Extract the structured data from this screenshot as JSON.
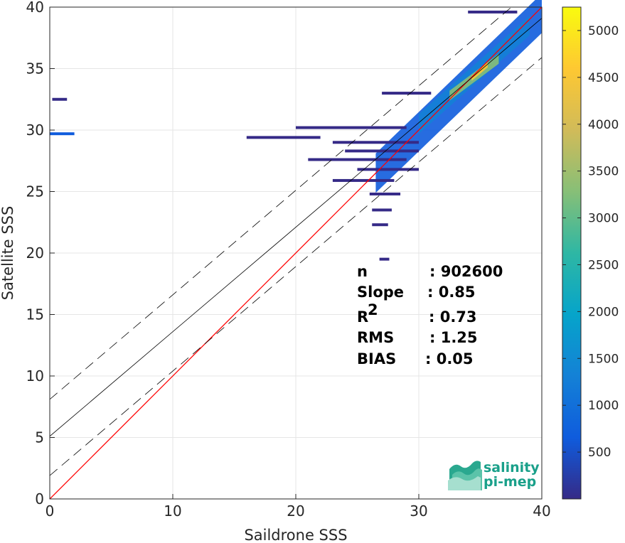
{
  "chart_data": {
    "type": "heatmap",
    "title": "",
    "xlabel": "Saildrone SSS",
    "ylabel": "Satellite SSS",
    "xlim": [
      0,
      40
    ],
    "ylim": [
      0,
      40
    ],
    "xticks": [
      "0",
      "10",
      "20",
      "30",
      "40"
    ],
    "yticks": [
      "0",
      "5",
      "10",
      "15",
      "20",
      "25",
      "30",
      "35",
      "40"
    ],
    "grid": true,
    "colorbar": {
      "range": [
        0,
        5250
      ],
      "ticks": [
        "500",
        "1000",
        "1500",
        "2000",
        "2500",
        "3000",
        "3500",
        "4000",
        "4500",
        "5000"
      ],
      "colormap": "parula",
      "colors": [
        "#352a87",
        "#0f5cdd",
        "#1481d6",
        "#06a4ca",
        "#2eb7a4",
        "#87bf77",
        "#d1bb59",
        "#fec832",
        "#f9fb0e"
      ]
    },
    "lines": [
      {
        "role": "identity",
        "color": "#ff0000",
        "x": [
          0,
          40
        ],
        "y": [
          0,
          40
        ]
      },
      {
        "role": "regression",
        "color": "#000000",
        "x": [
          0,
          40
        ],
        "y": [
          5.1,
          39.1
        ]
      },
      {
        "role": "regression-upper",
        "color": "#000000",
        "style": "dashed",
        "x": [
          0,
          40
        ],
        "y": [
          8.1,
          42.1
        ]
      },
      {
        "role": "regression-lower",
        "color": "#000000",
        "style": "dashed",
        "x": [
          0,
          40
        ],
        "y": [
          1.9,
          35.9
        ]
      }
    ],
    "density_bands": [
      {
        "x0": 26.5,
        "x1": 40,
        "y_at_x0": 26.5,
        "y_at_x1": 39.5,
        "half_width": 1.6,
        "value": 600
      },
      {
        "x0": 30,
        "x1": 39,
        "y_at_x0": 30.5,
        "y_at_x1": 38.5,
        "half_width": 0.8,
        "value": 1400
      },
      {
        "x0": 32.5,
        "x1": 36.5,
        "y_at_x0": 32.8,
        "y_at_x1": 35.8,
        "half_width": 0.4,
        "value": 3000
      },
      {
        "x0": 34.3,
        "x1": 35.6,
        "y_at_x0": 34.2,
        "y_at_x1": 35.3,
        "half_width": 0.2,
        "value": 4600
      }
    ],
    "density_streaks": [
      {
        "x0": 0,
        "x1": 2,
        "y": 29.7,
        "value": 400
      },
      {
        "x0": 0.2,
        "x1": 1.4,
        "y": 32.5,
        "value": 200
      },
      {
        "x0": 16,
        "x1": 22,
        "y": 29.4,
        "value": 150
      },
      {
        "x0": 20,
        "x1": 29,
        "y": 30.2,
        "value": 250
      },
      {
        "x0": 23,
        "x1": 30,
        "y": 29.0,
        "value": 250
      },
      {
        "x0": 24,
        "x1": 30,
        "y": 28.3,
        "value": 300
      },
      {
        "x0": 21,
        "x1": 29,
        "y": 27.6,
        "value": 250
      },
      {
        "x0": 25,
        "x1": 30,
        "y": 26.8,
        "value": 300
      },
      {
        "x0": 23,
        "x1": 28,
        "y": 25.9,
        "value": 250
      },
      {
        "x0": 26,
        "x1": 28.5,
        "y": 24.8,
        "value": 250
      },
      {
        "x0": 26.2,
        "x1": 27.8,
        "y": 23.5,
        "value": 200
      },
      {
        "x0": 26.2,
        "x1": 27.5,
        "y": 22.3,
        "value": 150
      },
      {
        "x0": 26.8,
        "x1": 27.6,
        "y": 19.5,
        "value": 150
      },
      {
        "x0": 34,
        "x1": 38,
        "y": 39.6,
        "value": 300
      },
      {
        "x0": 27,
        "x1": 31,
        "y": 33.0,
        "value": 250
      }
    ],
    "stats": [
      {
        "label": "n",
        "value": ": 902600"
      },
      {
        "label": "Slope",
        "value": ": 0.85"
      },
      {
        "label": "R",
        "sup": "2",
        "value": ": 0.73"
      },
      {
        "label": "RMS",
        "value": ": 1.25"
      },
      {
        "label": "BIAS",
        "value": ": 0.05"
      }
    ]
  },
  "logo": {
    "line1": "salinity",
    "line2": "pi-mep"
  }
}
